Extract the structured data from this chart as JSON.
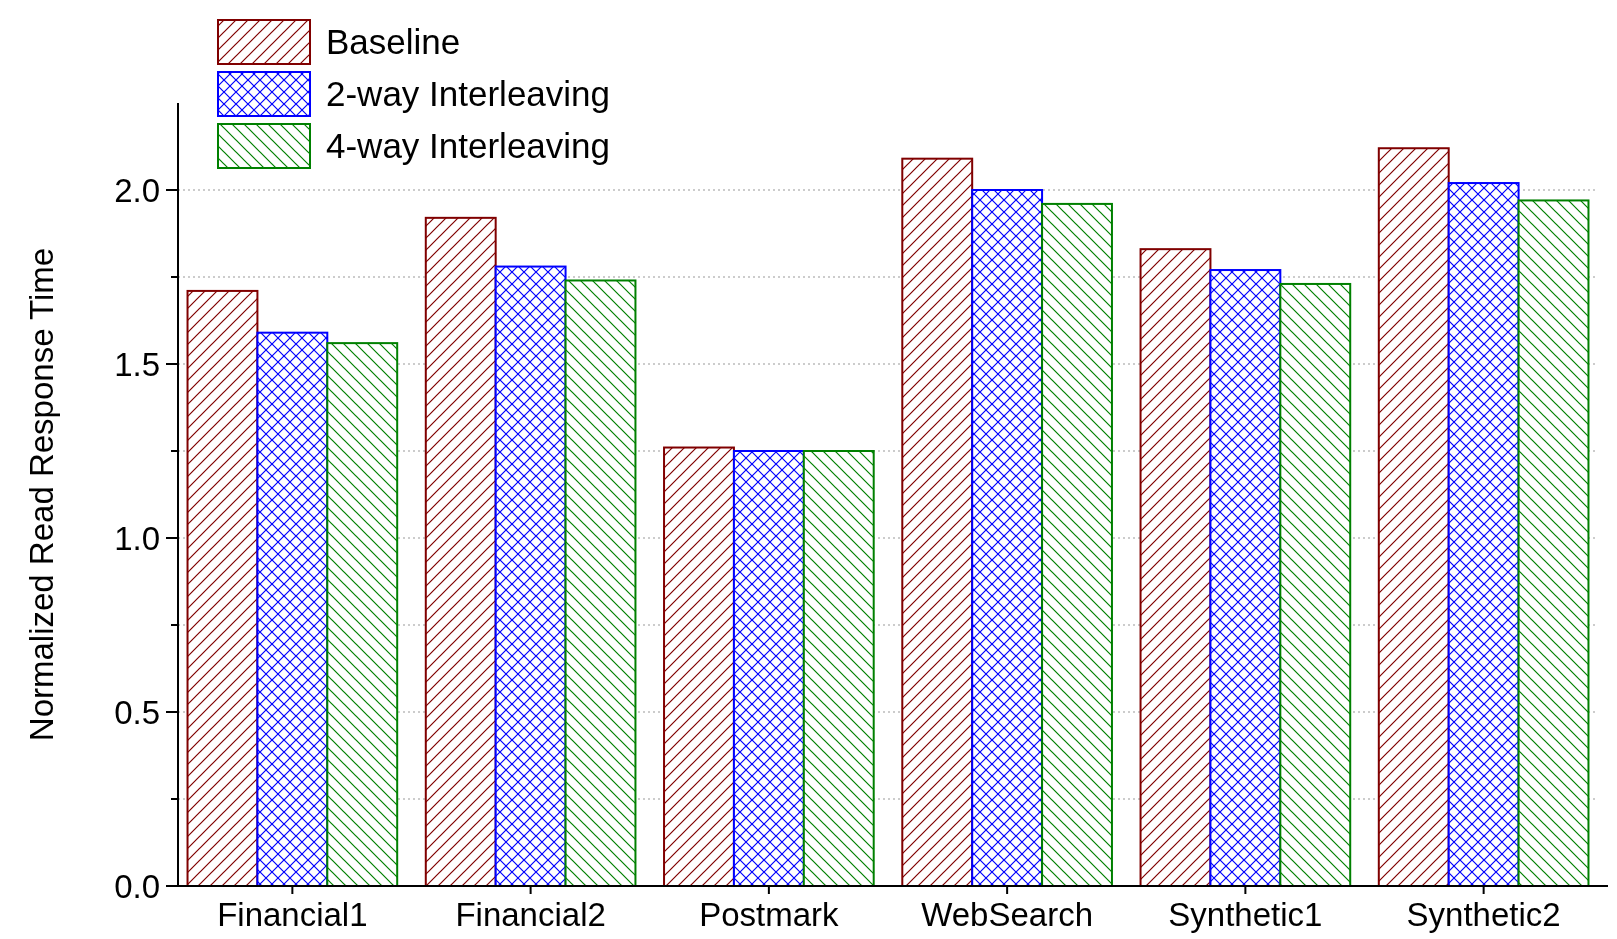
{
  "chart_data": {
    "type": "bar",
    "ylabel": "Normalized Read Response Time",
    "categories": [
      "Financial1",
      "Financial2",
      "Postmark",
      "WebSearch",
      "Synthetic1",
      "Synthetic2"
    ],
    "series": [
      {
        "name": "Baseline",
        "color": "#800000",
        "values": [
          1.71,
          1.92,
          1.26,
          2.09,
          1.83,
          2.12
        ]
      },
      {
        "name": "2-way Interleaving",
        "color": "#0000ff",
        "values": [
          1.59,
          1.78,
          1.25,
          2.0,
          1.77,
          2.02
        ]
      },
      {
        "name": "4-way Interleaving",
        "color": "#008000",
        "values": [
          1.56,
          1.74,
          1.25,
          1.96,
          1.73,
          1.97
        ]
      }
    ],
    "ylim": [
      0,
      2.25
    ],
    "yticks": [
      {
        "value": 0,
        "label": "0.0"
      },
      {
        "value": 0.25,
        "label": null
      },
      {
        "value": 0.5,
        "label": "0.5"
      },
      {
        "value": 0.75,
        "label": null
      },
      {
        "value": 1,
        "label": "1.0"
      },
      {
        "value": 1.25,
        "label": null
      },
      {
        "value": 1.5,
        "label": "1.5"
      },
      {
        "value": 1.75,
        "label": null
      },
      {
        "value": 2,
        "label": "2.0"
      }
    ],
    "grid": "y",
    "legend": "top left"
  }
}
